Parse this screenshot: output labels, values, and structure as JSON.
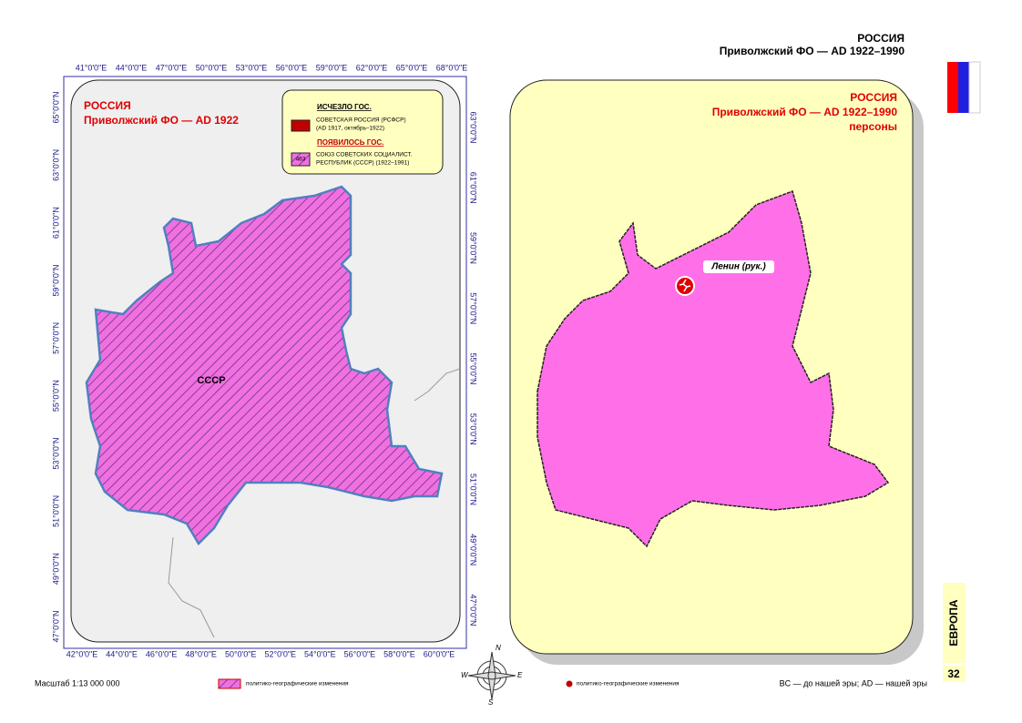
{
  "header": {
    "title": "РОССИЯ",
    "subtitle": "Приволжский ФО — AD 1922–1990"
  },
  "left_map": {
    "title": "РОССИЯ",
    "subtitle": "Приволжский ФО — AD 1922",
    "legend": {
      "gone_heading": "ИСЧЕЗЛО ГОС.",
      "gone_line1": "СОВЕТСКАЯ РОССИЯ (РСФСР)",
      "gone_line2": "(AD 1917, октябрь–1922)",
      "new_heading": "ПОЯВИЛОСЬ ГОС.",
      "new_code": "463",
      "new_line1": "СОЮЗ СОВЕТСКИХ СОЦИАЛИСТ.",
      "new_line2": "РЕСПУБЛИК (СССР) (1922–1991)"
    },
    "region_label": "СССР",
    "top_axis": [
      "41°0'0\"E",
      "44°0'0\"E",
      "47°0'0\"E",
      "50°0'0\"E",
      "53°0'0\"E",
      "56°0'0\"E",
      "59°0'0\"E",
      "62°0'0\"E",
      "65°0'0\"E",
      "68°0'0\"E"
    ],
    "bottom_axis": [
      "42°0'0\"E",
      "44°0'0\"E",
      "46°0'0\"E",
      "48°0'0\"E",
      "50°0'0\"E",
      "52°0'0\"E",
      "54°0'0\"E",
      "56°0'0\"E",
      "58°0'0\"E",
      "60°0'0\"E"
    ],
    "left_axis": [
      "65°0'0\"N",
      "63°0'0\"N",
      "61°0'0\"N",
      "59°0'0\"N",
      "57°0'0\"N",
      "55°0'0\"N",
      "53°0'0\"N",
      "51°0'0\"N",
      "49°0'0\"N",
      "47°0'0\"N"
    ],
    "right_axis": [
      "63°0'0\"N",
      "61°0'0\"N",
      "59°0'0\"N",
      "57°0'0\"N",
      "55°0'0\"N",
      "53°0'0\"N",
      "51°0'0\"N",
      "49°0'0\"N",
      "47°0'0\"N"
    ]
  },
  "right_map": {
    "title": "РОССИЯ",
    "subtitle": "Приволжский ФО — AD 1922–1990",
    "subtitle2": "персоны",
    "person_label": "Ленин (рук.)"
  },
  "side_tab": {
    "section": "ЕВРОПА",
    "page": "32"
  },
  "compass": [
    "N",
    "W",
    "E",
    "S"
  ],
  "footer": {
    "scale": "Масштаб 1:13 000 000",
    "legend_left": "политико-географические изменения",
    "legend_right": "политико-географические изменения",
    "era_note": "BC — до нашей эры; AD — нашей эры"
  }
}
